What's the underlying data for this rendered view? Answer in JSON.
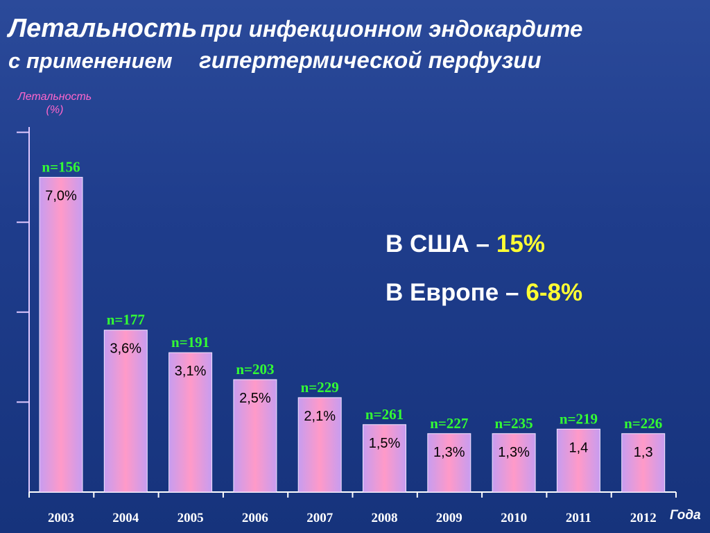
{
  "title": {
    "main": "Летальность",
    "rest": "при инфекционном эндокардите",
    "line2_a": "с применением",
    "line2_b": "гипертермической перфузии"
  },
  "info": {
    "usa_label": "В США –",
    "usa_value": "15%",
    "europe_label": "В Европе –",
    "europe_value": "6-8%"
  },
  "colors": {
    "background": "#1f3d8c",
    "bar_pink": "#ff9ac8",
    "bar_violet": "#c79cf0",
    "n_label": "#33ff33",
    "highlight": "#ffff33",
    "ylabel": "#ff66cc"
  },
  "chart_data": {
    "type": "bar",
    "ylabel": "Летальность\n(%)",
    "xlabel": "Года",
    "ylim": [
      0,
      10
    ],
    "grid": false,
    "categories": [
      "2003",
      "2004",
      "2005",
      "2006",
      "2007",
      "2008",
      "2009",
      "2010",
      "2011",
      "2012"
    ],
    "values": [
      7.0,
      3.6,
      3.1,
      2.5,
      2.1,
      1.5,
      1.3,
      1.3,
      1.4,
      1.3
    ],
    "value_labels": [
      "7,0%",
      "3,6%",
      "3,1%",
      "2,5%",
      "2,1%",
      "1,5%",
      "1,3%",
      "1,3%",
      "1,4",
      "1,3"
    ],
    "n_labels": [
      "n=156",
      "n=177",
      "n=191",
      "n=203",
      "n=229",
      "n=261",
      "n=227",
      "n=235",
      "n=219",
      "n=226"
    ]
  }
}
